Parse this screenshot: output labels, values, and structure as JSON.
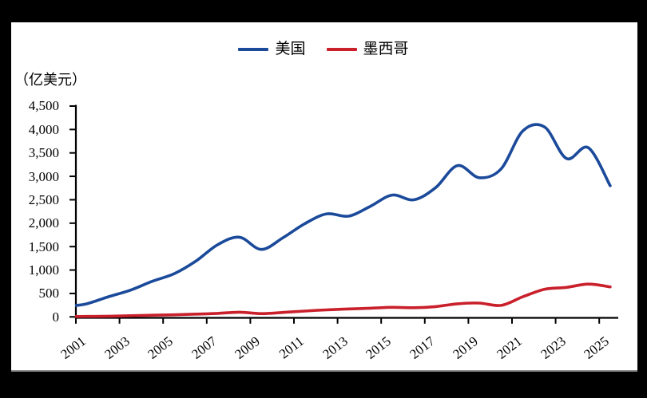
{
  "window": {
    "frame_color": "#000000",
    "chart_background": "#ffffff"
  },
  "legend": {
    "items": [
      {
        "label": "美国",
        "color": "#1b4a9b"
      },
      {
        "label": "墨西哥",
        "color": "#c9202b"
      }
    ]
  },
  "y_axis": {
    "unit_label": "（亿美元）",
    "min": 0,
    "max": 4500,
    "step": 500,
    "ticks": [
      {
        "label": "0",
        "value": 0
      },
      {
        "label": "500",
        "value": 500
      },
      {
        "label": "1,000",
        "value": 1000
      },
      {
        "label": "1,500",
        "value": 1500
      },
      {
        "label": "2,000",
        "value": 2000
      },
      {
        "label": "2,500",
        "value": 2500
      },
      {
        "label": "3,000",
        "value": 3000
      },
      {
        "label": "3,500",
        "value": 3500
      },
      {
        "label": "4,000",
        "value": 4000
      },
      {
        "label": "4,500",
        "value": 4500
      }
    ]
  },
  "x_axis": {
    "tick_years": [
      2001,
      2003,
      2005,
      2007,
      2009,
      2011,
      2013,
      2015,
      2017,
      2019,
      2021,
      2023,
      2025
    ]
  },
  "chart_data": {
    "type": "line",
    "title": "",
    "xlabel": "",
    "ylabel": "（亿美元）",
    "ylim": [
      0,
      4500
    ],
    "grid": false,
    "legend_position": "top-center",
    "x": [
      2001,
      2002,
      2003,
      2004,
      2005,
      2006,
      2007,
      2008,
      2009,
      2010,
      2011,
      2012,
      2013,
      2014,
      2015,
      2016,
      2017,
      2018,
      2019,
      2020,
      2021,
      2022,
      2023,
      2024,
      2025
    ],
    "series": [
      {
        "name": "美国",
        "color": "#1b4a9b",
        "values": [
          280,
          430,
          570,
          760,
          920,
          1190,
          1540,
          1700,
          1440,
          1690,
          1990,
          2200,
          2150,
          2360,
          2600,
          2500,
          2760,
          3230,
          2970,
          3160,
          3970,
          4050,
          3380,
          3610,
          2800
        ]
      },
      {
        "name": "墨西哥",
        "color": "#c9202b",
        "values": [
          10,
          15,
          25,
          35,
          45,
          60,
          75,
          100,
          70,
          95,
          125,
          150,
          170,
          185,
          205,
          195,
          220,
          280,
          295,
          245,
          430,
          590,
          630,
          700,
          640
        ]
      }
    ]
  }
}
